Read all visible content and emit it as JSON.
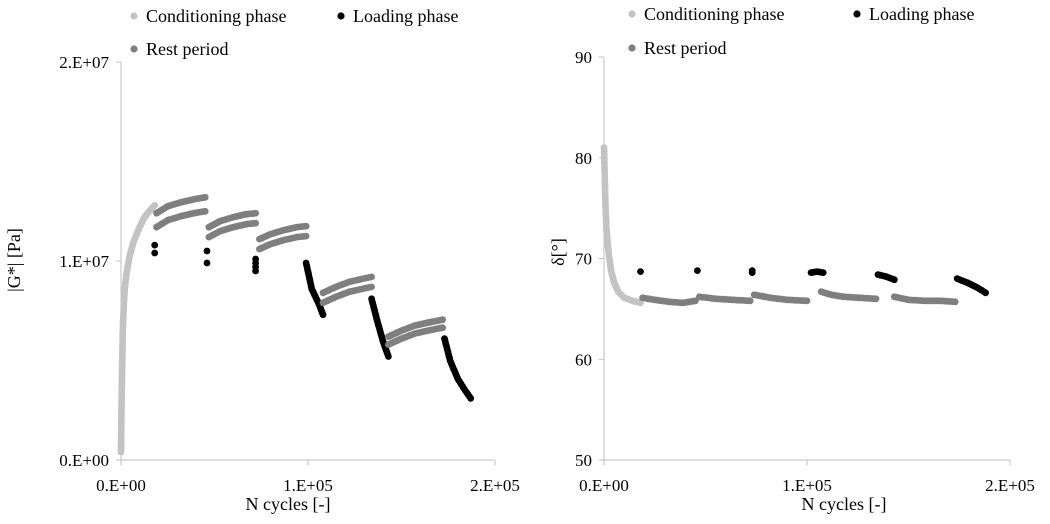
{
  "colors": {
    "conditioning": "#c3c3c3",
    "loading": "#000000",
    "rest": "#7f7f7f"
  },
  "chart_data": [
    {
      "type": "scatter",
      "xlabel": "N cycles [-]",
      "ylabel": "|G*| [Pa]",
      "xlim": [
        0,
        200000
      ],
      "ylim": [
        0,
        20000000
      ],
      "xticks": [
        {
          "value": 0,
          "label": "0.E+00"
        },
        {
          "value": 100000,
          "label": "1.E+05"
        },
        {
          "value": 200000,
          "label": "2.E+05"
        }
      ],
      "yticks": [
        {
          "value": 0,
          "label": "0.E+00"
        },
        {
          "value": 10000000,
          "label": "1.E+07"
        },
        {
          "value": 20000000,
          "label": "2.E+07"
        }
      ],
      "legend": [
        "Conditioning phase",
        "Loading phase",
        "Rest period"
      ],
      "legend_position": "top",
      "grid": false,
      "series": [
        {
          "name": "Conditioning phase",
          "color_key": "conditioning",
          "curve": [
            [
              0,
              400000
            ],
            [
              150,
              1700000
            ],
            [
              400,
              3500000
            ],
            [
              700,
              5200000
            ],
            [
              1000,
              6600000
            ],
            [
              1500,
              7800000
            ],
            [
              2000,
              8600000
            ],
            [
              3000,
              9400000
            ],
            [
              4500,
              10200000
            ],
            [
              6500,
              10900000
            ],
            [
              9000,
              11500000
            ],
            [
              12000,
              12100000
            ],
            [
              15000,
              12500000
            ],
            [
              18000,
              12800000
            ]
          ]
        },
        {
          "name": "Loading phase",
          "color_key": "loading",
          "points": [
            [
              18000,
              10800000
            ],
            [
              18000,
              10400000
            ],
            [
              46000,
              10500000
            ],
            [
              46000,
              9900000
            ],
            [
              72000,
              10100000
            ],
            [
              72000,
              9900000
            ],
            [
              72000,
              9700000
            ],
            [
              72000,
              9500000
            ]
          ],
          "curves": [
            [
              [
                99000,
                9900000
              ],
              [
                102000,
                8600000
              ],
              [
                106000,
                7800000
              ],
              [
                108000,
                7300000
              ]
            ],
            [
              [
                134000,
                8100000
              ],
              [
                137000,
                7000000
              ],
              [
                140000,
                6000000
              ],
              [
                143000,
                5200000
              ]
            ],
            [
              [
                173000,
                6100000
              ],
              [
                176000,
                5000000
              ],
              [
                180000,
                4100000
              ],
              [
                184000,
                3500000
              ],
              [
                187000,
                3100000
              ]
            ]
          ]
        },
        {
          "name": "Rest period",
          "color_key": "rest",
          "curves": [
            [
              [
                19000,
                12400000
              ],
              [
                25000,
                12750000
              ],
              [
                32000,
                12950000
              ],
              [
                39000,
                13100000
              ],
              [
                45000,
                13200000
              ]
            ],
            [
              [
                19000,
                11700000
              ],
              [
                25000,
                12050000
              ],
              [
                32000,
                12250000
              ],
              [
                39000,
                12400000
              ],
              [
                45000,
                12500000
              ]
            ],
            [
              [
                47000,
                11700000
              ],
              [
                53000,
                12000000
              ],
              [
                60000,
                12200000
              ],
              [
                67000,
                12350000
              ],
              [
                72000,
                12400000
              ]
            ],
            [
              [
                47000,
                11200000
              ],
              [
                53000,
                11500000
              ],
              [
                60000,
                11700000
              ],
              [
                67000,
                11850000
              ],
              [
                72000,
                11900000
              ]
            ],
            [
              [
                74000,
                11100000
              ],
              [
                80000,
                11350000
              ],
              [
                87000,
                11550000
              ],
              [
                94000,
                11700000
              ],
              [
                99000,
                11750000
              ]
            ],
            [
              [
                74000,
                10600000
              ],
              [
                80000,
                10850000
              ],
              [
                87000,
                11050000
              ],
              [
                94000,
                11200000
              ],
              [
                99000,
                11250000
              ]
            ],
            [
              [
                108000,
                8400000
              ],
              [
                115000,
                8700000
              ],
              [
                122000,
                8950000
              ],
              [
                129000,
                9100000
              ],
              [
                134000,
                9200000
              ]
            ],
            [
              [
                108000,
                7900000
              ],
              [
                115000,
                8200000
              ],
              [
                122000,
                8450000
              ],
              [
                129000,
                8600000
              ],
              [
                134000,
                8700000
              ]
            ],
            [
              [
                143000,
                6200000
              ],
              [
                150000,
                6500000
              ],
              [
                157000,
                6750000
              ],
              [
                164000,
                6900000
              ],
              [
                172000,
                7050000
              ]
            ],
            [
              [
                143000,
                5800000
              ],
              [
                150000,
                6100000
              ],
              [
                157000,
                6350000
              ],
              [
                164000,
                6500000
              ],
              [
                172000,
                6650000
              ]
            ]
          ]
        }
      ]
    },
    {
      "type": "scatter",
      "xlabel": "N cycles [-]",
      "ylabel": "δ[°]",
      "xlim": [
        0,
        200000
      ],
      "ylim": [
        50,
        90
      ],
      "xticks": [
        {
          "value": 0,
          "label": "0.E+00"
        },
        {
          "value": 100000,
          "label": "1.E+05"
        },
        {
          "value": 200000,
          "label": "2.E+05"
        }
      ],
      "yticks": [
        {
          "value": 50,
          "label": "50"
        },
        {
          "value": 60,
          "label": "60"
        },
        {
          "value": 70,
          "label": "70"
        },
        {
          "value": 80,
          "label": "80"
        },
        {
          "value": 90,
          "label": "90"
        }
      ],
      "legend": [
        "Conditioning phase",
        "Loading phase",
        "Rest period"
      ],
      "legend_position": "top",
      "grid": false,
      "series": [
        {
          "name": "Conditioning phase",
          "color_key": "conditioning",
          "curve": [
            [
              0,
              81
            ],
            [
              300,
              78.5
            ],
            [
              700,
              75.5
            ],
            [
              1200,
              73
            ],
            [
              1800,
              71.5
            ],
            [
              2500,
              70.2
            ],
            [
              3500,
              68.8
            ],
            [
              5000,
              67.6
            ],
            [
              7000,
              66.7
            ],
            [
              10000,
              66.1
            ],
            [
              14000,
              65.8
            ],
            [
              18000,
              65.6
            ]
          ]
        },
        {
          "name": "Loading phase",
          "color_key": "loading",
          "points": [
            [
              18000,
              68.7
            ],
            [
              46000,
              68.8
            ],
            [
              73000,
              68.8
            ],
            [
              73000,
              68.6
            ]
          ],
          "curves": [
            [
              [
                102000,
                68.6
              ],
              [
                105000,
                68.7
              ],
              [
                108000,
                68.6
              ]
            ],
            [
              [
                135000,
                68.4
              ],
              [
                139000,
                68.2
              ],
              [
                143000,
                67.9
              ]
            ],
            [
              [
                174000,
                68
              ],
              [
                179000,
                67.6
              ],
              [
                184000,
                67.1
              ],
              [
                188000,
                66.6
              ]
            ]
          ]
        },
        {
          "name": "Rest period",
          "color_key": "rest",
          "curves": [
            [
              [
                19000,
                66.1
              ],
              [
                25000,
                65.9
              ],
              [
                32000,
                65.7
              ],
              [
                39000,
                65.6
              ],
              [
                45000,
                65.8
              ]
            ],
            [
              [
                47000,
                66.2
              ],
              [
                55000,
                66
              ],
              [
                63000,
                65.9
              ],
              [
                72000,
                65.8
              ]
            ],
            [
              [
                74000,
                66.4
              ],
              [
                82000,
                66.1
              ],
              [
                90000,
                65.9
              ],
              [
                100000,
                65.8
              ]
            ],
            [
              [
                107000,
                66.7
              ],
              [
                112000,
                66.4
              ],
              [
                118000,
                66.2
              ],
              [
                126000,
                66.1
              ],
              [
                134000,
                66
              ]
            ],
            [
              [
                143000,
                66.2
              ],
              [
                150000,
                65.9
              ],
              [
                158000,
                65.8
              ],
              [
                166000,
                65.8
              ],
              [
                173000,
                65.7
              ]
            ]
          ]
        }
      ]
    }
  ]
}
